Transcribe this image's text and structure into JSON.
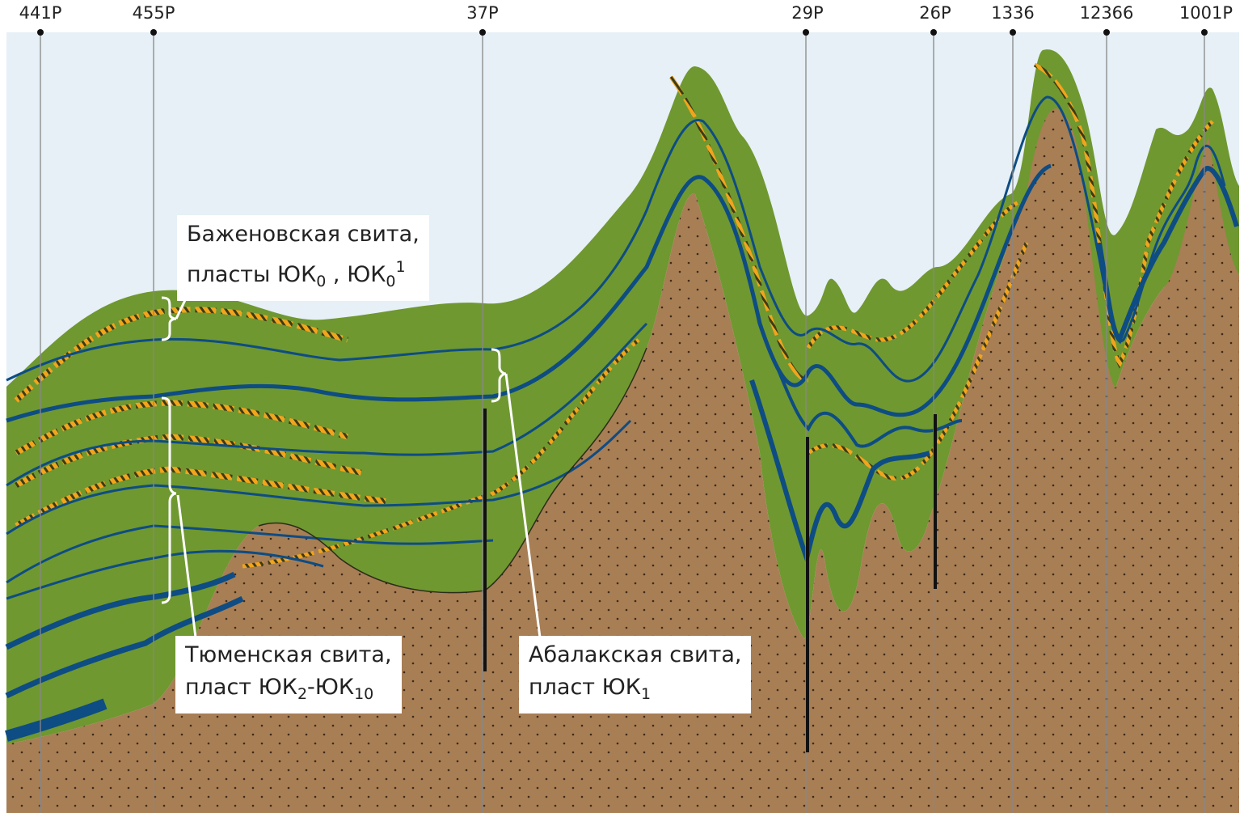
{
  "wells": [
    {
      "name": "441Р"
    },
    {
      "name": "455Р"
    },
    {
      "name": "37Р"
    },
    {
      "name": "29Р"
    },
    {
      "name": "26Р"
    },
    {
      "name": "1336"
    },
    {
      "name": "12366"
    },
    {
      "name": "1001Р"
    }
  ],
  "callouts": {
    "bazhenov": {
      "line1": "Баженовская свита,",
      "line2_a": "пласты ЮК",
      "sub1": "0",
      "line2_b": " , ЮК",
      "sub2": "0",
      "sup2": "1"
    },
    "tyumen": {
      "line1": "Тюменская свита,",
      "line2_a": "пласт ЮК",
      "sub1": "2",
      "line2_b": "-ЮК",
      "sub2": "10"
    },
    "abalak": {
      "line1": "Абалакская свита,",
      "line2_a": "пласт ЮК",
      "sub1": "1"
    }
  },
  "colors": {
    "sky": "#e6f0f6",
    "sediment": "#6f9830",
    "basement": "#a87e55",
    "coal_line": "#0e4c84",
    "sand_hatch": "#f2a51c",
    "well_line": "#888888",
    "borehole": "#111111"
  }
}
